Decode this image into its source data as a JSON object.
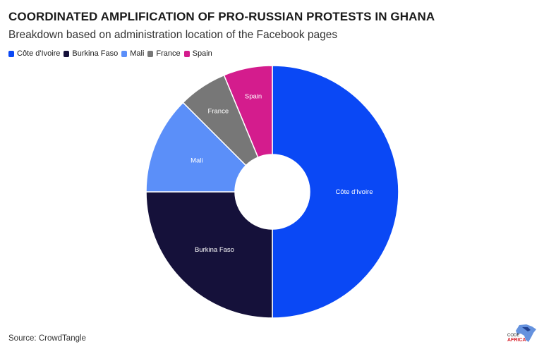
{
  "header": {
    "title": "COORDINATED AMPLIFICATION OF PRO-RUSSIAN PROTESTS IN GHANA",
    "subtitle": "Breakdown based on administration location of the Facebook pages"
  },
  "chart_data": {
    "type": "pie",
    "donut": true,
    "start_angle_deg": 0,
    "direction": "clockwise",
    "legend_position": "top-left",
    "categories": [
      "Côte d'Ivoire",
      "Burkina Faso",
      "Mali",
      "France",
      "Spain"
    ],
    "values": [
      50,
      25,
      12.5,
      6.25,
      6.25
    ],
    "colors": [
      "#0a48f5",
      "#15113a",
      "#5b8ff9",
      "#777777",
      "#d41c8d"
    ],
    "slice_labels": [
      "Côte d'Ivoire",
      "Burkina Faso",
      "Mali",
      "France",
      "Spain"
    ]
  },
  "footer": {
    "source": "Source: CrowdTangle",
    "logo_text_top": "CODE",
    "logo_text_bottom": "AFRICA"
  }
}
